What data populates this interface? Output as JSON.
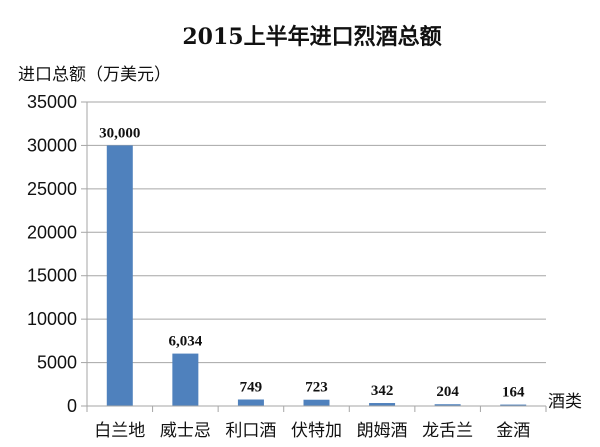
{
  "chart_data": {
    "type": "bar",
    "title": "2015上半年进口烈酒总额",
    "ylabel": "进口总额（万美元）",
    "xlabel": "酒类",
    "categories": [
      "白兰地",
      "威士忌",
      "利口酒",
      "伏特加",
      "朗姆酒",
      "龙舌兰",
      "金酒"
    ],
    "values": [
      30000,
      6034,
      749,
      723,
      342,
      204,
      164
    ],
    "data_labels": [
      "30,000",
      "6,034",
      "749",
      "723",
      "342",
      "204",
      "164"
    ],
    "yticks": [
      "0",
      "5000",
      "10000",
      "15000",
      "20000",
      "25000",
      "30000",
      "35000"
    ],
    "ylim": [
      0,
      35000
    ],
    "grid": true,
    "bar_color": "#4f81bd",
    "grid_color": "#a6a6a6"
  }
}
